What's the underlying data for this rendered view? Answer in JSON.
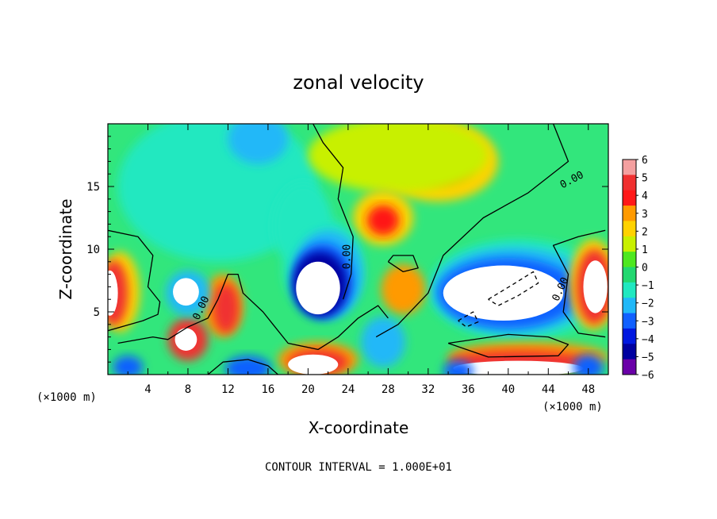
{
  "chart_data": {
    "type": "heatmap",
    "title": "zonal velocity",
    "xlabel": "X-coordinate",
    "ylabel": "Z-coordinate",
    "x_unit_left": "(×1000 m)",
    "x_unit_right": "(×1000 m)",
    "footer": "CONTOUR INTERVAL = 1.000E+01",
    "xlim": [
      0,
      50
    ],
    "ylim": [
      0,
      20
    ],
    "x_ticks": [
      4,
      8,
      12,
      16,
      20,
      24,
      28,
      32,
      36,
      40,
      44,
      48
    ],
    "y_ticks": [
      5,
      10,
      15
    ],
    "colorbar": {
      "levels": [
        6,
        5,
        4,
        3,
        2,
        1,
        0,
        -1,
        -2,
        -3,
        -4,
        -5,
        -6
      ],
      "colors": [
        "#f4a0a0",
        "#f03030",
        "#ff1818",
        "#ff9a00",
        "#ffd200",
        "#c8f000",
        "#4ee820",
        "#22d870",
        "#20e8c0",
        "#20b8f8",
        "#1060ff",
        "#0018e0",
        "#0000a0",
        "#6a00a8"
      ]
    },
    "contour_labels": [
      {
        "text": "0.00",
        "x": 46.5,
        "y": 15.3,
        "rotate": -28
      },
      {
        "text": "0.00",
        "x": 24.2,
        "y": 9.4,
        "rotate": -90
      },
      {
        "text": "0.00",
        "x": 9.6,
        "y": 5.2,
        "rotate": -65
      },
      {
        "text": "0.00",
        "x": 45.5,
        "y": 6.7,
        "rotate": -65
      }
    ],
    "regions": [
      {
        "level": -2,
        "ellipses": [
          [
            11,
            15,
            10,
            6
          ]
        ]
      },
      {
        "level": -3,
        "ellipses": [
          [
            15,
            18.8,
            3,
            2
          ]
        ]
      },
      {
        "level": 2,
        "ellipses": [
          [
            33,
            17,
            6,
            3.2
          ]
        ]
      },
      {
        "level": 3,
        "ellipses": [
          [
            33.5,
            16.8,
            3,
            1.6
          ]
        ]
      },
      {
        "level": 1,
        "ellipses": [
          [
            29,
            17.5,
            9,
            3
          ]
        ]
      },
      {
        "level": 2,
        "ellipses": [
          [
            27.5,
            12.5,
            3,
            2.2
          ]
        ]
      },
      {
        "level": 4,
        "ellipses": [
          [
            27.5,
            12.3,
            1.6,
            1.2
          ]
        ]
      },
      {
        "level": -2,
        "ellipses": [
          [
            19.5,
            11.8,
            3,
            3.5
          ],
          [
            21.5,
            8.5,
            4,
            4
          ],
          [
            41,
            6.8,
            9,
            4
          ]
        ]
      },
      {
        "level": -3,
        "ellipses": [
          [
            40.5,
            6.7,
            8,
            3.4
          ],
          [
            22,
            8,
            3.5,
            3.5
          ]
        ]
      },
      {
        "level": -4,
        "ellipses": [
          [
            40,
            6.5,
            7,
            2.8
          ],
          [
            21.5,
            7.5,
            3,
            3
          ]
        ]
      },
      {
        "level": -6,
        "ellipses": [
          [
            21.2,
            7.2,
            2.7,
            2.6
          ]
        ]
      },
      {
        "level": 99,
        "ellipses": [
          [
            39.5,
            6.5,
            6,
            2.2
          ],
          [
            21,
            6.9,
            2.2,
            2.1
          ]
        ]
      },
      {
        "level": 3,
        "ellipses": [
          [
            11.5,
            5.5,
            2,
            2.5
          ],
          [
            29.5,
            6.8,
            2.2,
            2
          ]
        ]
      },
      {
        "level": 5,
        "ellipses": [
          [
            11.8,
            5.3,
            1.3,
            2
          ],
          [
            8,
            2.8,
            2,
            1.7
          ]
        ]
      },
      {
        "level": -3,
        "ellipses": [
          [
            8,
            6.5,
            2.2,
            1.8
          ],
          [
            27.5,
            2.6,
            2.2,
            2
          ]
        ]
      },
      {
        "level": 99,
        "ellipses": [
          [
            7.8,
            6.6,
            1.3,
            1.1
          ],
          [
            7.8,
            2.8,
            1.1,
            0.9
          ]
        ]
      },
      {
        "level": 2,
        "ellipses": [
          [
            1.2,
            6.6,
            2,
            3.2
          ],
          [
            48.5,
            7.2,
            2.4,
            3.6
          ]
        ]
      },
      {
        "level": 5,
        "ellipses": [
          [
            0.6,
            6.5,
            1.4,
            2.6
          ],
          [
            48.6,
            7,
            1.8,
            3
          ]
        ]
      },
      {
        "level": 99,
        "ellipses": [
          [
            0.2,
            6.5,
            0.8,
            1.8
          ],
          [
            48.7,
            7,
            1.2,
            2.1
          ]
        ]
      },
      {
        "level": 3,
        "ellipses": [
          [
            21,
            1.2,
            4,
            1.4
          ],
          [
            42,
            1.4,
            8,
            1.2
          ]
        ]
      },
      {
        "level": 5,
        "ellipses": [
          [
            21,
            1,
            3,
            1
          ],
          [
            41,
            1,
            7,
            0.9
          ]
        ]
      },
      {
        "level": 99,
        "ellipses": [
          [
            20.5,
            0.8,
            2.5,
            0.8
          ],
          [
            41,
            0.5,
            6.5,
            0.6
          ]
        ]
      },
      {
        "level": -4,
        "ellipses": [
          [
            14,
            0.5,
            2.3,
            1
          ],
          [
            35,
            0.3,
            1.5,
            0.8
          ],
          [
            2,
            0.6,
            1.5,
            0.9
          ],
          [
            48,
            0.6,
            1.5,
            1
          ]
        ]
      }
    ],
    "contours": [
      {
        "style": "solid",
        "points": [
          [
            0,
            11.5
          ],
          [
            3,
            11
          ],
          [
            4.5,
            9.5
          ],
          [
            4,
            7
          ],
          [
            5.2,
            5.8
          ],
          [
            5,
            4.8
          ],
          [
            3.5,
            4.3
          ],
          [
            0,
            3.5
          ]
        ]
      },
      {
        "style": "solid",
        "points": [
          [
            20.5,
            20
          ],
          [
            21.5,
            18.5
          ],
          [
            23.5,
            16.5
          ],
          [
            23,
            14
          ],
          [
            24.5,
            11
          ],
          [
            24.3,
            8
          ],
          [
            23.5,
            6
          ]
        ]
      },
      {
        "style": "solid",
        "points": [
          [
            44.5,
            20
          ],
          [
            46,
            17
          ],
          [
            42,
            14.5
          ],
          [
            37.5,
            12.5
          ],
          [
            33.5,
            9.5
          ],
          [
            32,
            6.5
          ],
          [
            29,
            4
          ],
          [
            26.8,
            3
          ]
        ]
      },
      {
        "style": "solid",
        "points": [
          [
            49.7,
            11.5
          ],
          [
            47,
            11
          ],
          [
            44.5,
            10.3
          ],
          [
            46,
            8
          ],
          [
            45.5,
            5
          ],
          [
            47,
            3.3
          ],
          [
            49.7,
            3
          ]
        ]
      },
      {
        "style": "solid",
        "points": [
          [
            1,
            2.5
          ],
          [
            4.5,
            3
          ],
          [
            6,
            2.8
          ],
          [
            8,
            3.8
          ],
          [
            10,
            4.5
          ],
          [
            11,
            6
          ],
          [
            12,
            8
          ],
          [
            13,
            8
          ],
          [
            13.5,
            6.5
          ],
          [
            15.5,
            5
          ],
          [
            16.5,
            4
          ],
          [
            18,
            2.5
          ],
          [
            21,
            2
          ],
          [
            23,
            3
          ],
          [
            25,
            4.5
          ],
          [
            27,
            5.5
          ],
          [
            28,
            4.5
          ]
        ]
      },
      {
        "style": "solid",
        "points": [
          [
            28,
            9
          ],
          [
            29.5,
            8.2
          ],
          [
            31,
            8.5
          ],
          [
            30.5,
            9.5
          ],
          [
            28.5,
            9.5
          ],
          [
            28,
            9
          ]
        ]
      },
      {
        "style": "solid",
        "points": [
          [
            34,
            2.5
          ],
          [
            40,
            3.2
          ],
          [
            44,
            3
          ],
          [
            46,
            2.4
          ],
          [
            45,
            1.5
          ],
          [
            38,
            1.4
          ],
          [
            34,
            2.5
          ]
        ]
      },
      {
        "style": "solid",
        "points": [
          [
            10,
            0
          ],
          [
            11.5,
            1
          ],
          [
            14,
            1.2
          ],
          [
            16,
            0.7
          ],
          [
            17,
            0
          ]
        ]
      },
      {
        "style": "dashed",
        "points": [
          [
            38,
            6
          ],
          [
            40.5,
            7.2
          ],
          [
            42.5,
            8.2
          ],
          [
            43,
            7.3
          ],
          [
            41,
            6.3
          ],
          [
            39,
            5.5
          ],
          [
            38,
            6
          ]
        ]
      },
      {
        "style": "dashed",
        "points": [
          [
            35,
            4.3
          ],
          [
            36.5,
            5
          ],
          [
            37,
            4.2
          ],
          [
            35.8,
            3.8
          ],
          [
            35,
            4.3
          ]
        ]
      }
    ]
  }
}
